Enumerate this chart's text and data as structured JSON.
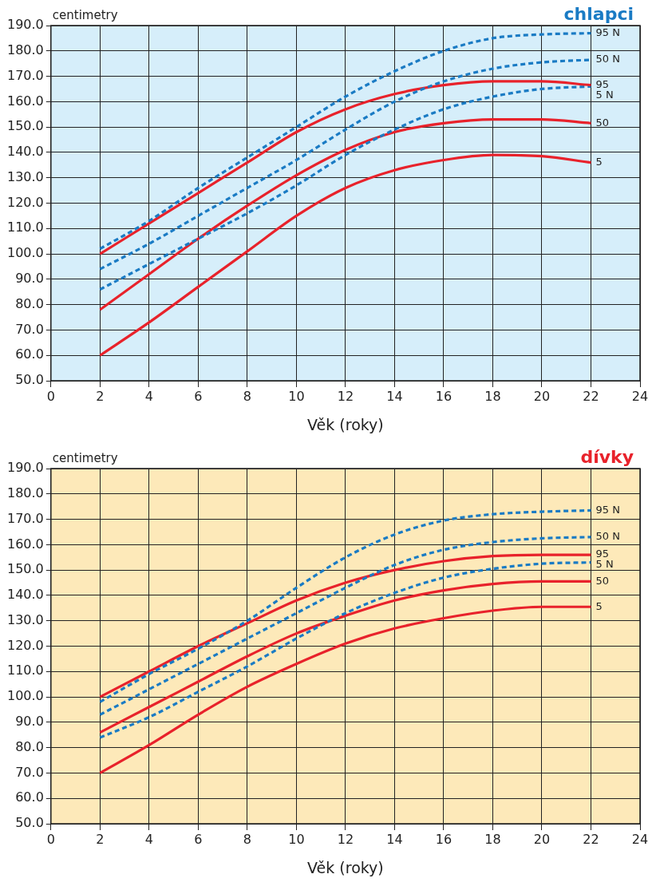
{
  "chart_data": [
    {
      "type": "line",
      "title": "chlapci",
      "ylabel": "centimetry",
      "xlabel": "Věk (roky)",
      "legend": false,
      "grid": true,
      "marker": "none",
      "x": [
        2,
        4,
        6,
        8,
        10,
        12,
        14,
        16,
        18,
        20,
        22
      ],
      "xlim": [
        0,
        24
      ],
      "xticks": [
        0,
        2,
        4,
        6,
        8,
        10,
        12,
        14,
        16,
        18,
        20,
        22,
        24
      ],
      "ylim": [
        50,
        190
      ],
      "yticks": [
        {
          "value": 50,
          "label": "50.0"
        },
        {
          "value": 60,
          "label": "60.0"
        },
        {
          "value": 70,
          "label": "70.0"
        },
        {
          "value": 80,
          "label": "80.0"
        },
        {
          "value": 90,
          "label": "90.0"
        },
        {
          "value": 100,
          "label": "100.0"
        },
        {
          "value": 110,
          "label": "110.0"
        },
        {
          "value": 120,
          "label": "120.0"
        },
        {
          "value": 130,
          "label": "130.0"
        },
        {
          "value": 140,
          "label": "140.0"
        },
        {
          "value": 150,
          "label": "150.0"
        },
        {
          "value": 160,
          "label": "160.0"
        },
        {
          "value": 170,
          "label": "170.0"
        },
        {
          "value": 180,
          "label": "180.0"
        },
        {
          "value": 190,
          "label": "190.0"
        }
      ],
      "series": [
        {
          "name": "95 N",
          "color": "#1a7bc4",
          "line_style": "dashed",
          "values": [
            102,
            113,
            126,
            138,
            150,
            162,
            172,
            180,
            185,
            186.5,
            187
          ]
        },
        {
          "name": "50 N",
          "color": "#1a7bc4",
          "line_style": "dashed",
          "values": [
            94,
            104,
            115,
            126,
            137,
            149,
            160,
            168,
            173,
            175.5,
            176.5
          ]
        },
        {
          "name": "95",
          "color": "#e8222b",
          "line_style": "solid",
          "values": [
            100,
            112,
            124,
            136,
            148,
            157,
            163,
            166.5,
            168,
            168,
            166.5
          ]
        },
        {
          "name": "5 N",
          "color": "#1a7bc4",
          "line_style": "dashed",
          "values": [
            86,
            96,
            106,
            116,
            127,
            139,
            149,
            157,
            162,
            165,
            166
          ]
        },
        {
          "name": "50",
          "color": "#e8222b",
          "line_style": "solid",
          "values": [
            78,
            92,
            106,
            119,
            131,
            141,
            148,
            151.5,
            153,
            153,
            151.5
          ]
        },
        {
          "name": "5",
          "color": "#e8222b",
          "line_style": "solid",
          "values": [
            60,
            73,
            87,
            101,
            115,
            126,
            133,
            137,
            139,
            138.5,
            136
          ]
        }
      ]
    },
    {
      "type": "line",
      "title": "dívky",
      "ylabel": "centimetry",
      "xlabel": "Věk (roky)",
      "legend": false,
      "grid": true,
      "marker": "none",
      "x": [
        2,
        4,
        6,
        8,
        10,
        12,
        14,
        16,
        18,
        20,
        22
      ],
      "xlim": [
        0,
        24
      ],
      "xticks": [
        0,
        2,
        4,
        6,
        8,
        10,
        12,
        14,
        16,
        18,
        20,
        22,
        24
      ],
      "ylim": [
        50,
        190
      ],
      "yticks": [
        {
          "value": 50,
          "label": "50.0"
        },
        {
          "value": 60,
          "label": "60.0"
        },
        {
          "value": 70,
          "label": "70.0"
        },
        {
          "value": 80,
          "label": "80.0"
        },
        {
          "value": 90,
          "label": "90.0"
        },
        {
          "value": 100,
          "label": "100.0"
        },
        {
          "value": 110,
          "label": "110.0"
        },
        {
          "value": 120,
          "label": "120.0"
        },
        {
          "value": 130,
          "label": "130.0"
        },
        {
          "value": 140,
          "label": "140.0"
        },
        {
          "value": 150,
          "label": "150.0"
        },
        {
          "value": 160,
          "label": "160.0"
        },
        {
          "value": 170,
          "label": "170.0"
        },
        {
          "value": 180,
          "label": "180.0"
        },
        {
          "value": 190,
          "label": "190.0"
        }
      ],
      "series": [
        {
          "name": "95 N",
          "color": "#1a7bc4",
          "line_style": "dashed",
          "values": [
            98,
            109,
            119,
            130,
            143,
            155,
            164,
            169.5,
            172,
            173,
            173.5
          ]
        },
        {
          "name": "50 N",
          "color": "#1a7bc4",
          "line_style": "dashed",
          "values": [
            93,
            103,
            113,
            123,
            133,
            143,
            152,
            158,
            161,
            162.5,
            163
          ]
        },
        {
          "name": "95",
          "color": "#e8222b",
          "line_style": "solid",
          "values": [
            100,
            110,
            120,
            129,
            138,
            145,
            150,
            153.5,
            155.5,
            156,
            156
          ]
        },
        {
          "name": "5 N",
          "color": "#1a7bc4",
          "line_style": "dashed",
          "values": [
            84,
            92,
            102,
            112,
            123,
            133,
            141,
            147,
            150.5,
            152.5,
            153
          ]
        },
        {
          "name": "50",
          "color": "#e8222b",
          "line_style": "solid",
          "values": [
            86,
            96,
            106,
            116,
            125,
            132,
            138,
            142,
            144.5,
            145.5,
            145.5
          ]
        },
        {
          "name": "5",
          "color": "#e8222b",
          "line_style": "solid",
          "values": [
            70,
            81,
            93,
            104,
            113,
            121,
            127,
            131,
            134,
            135.5,
            135.5
          ]
        }
      ]
    }
  ]
}
